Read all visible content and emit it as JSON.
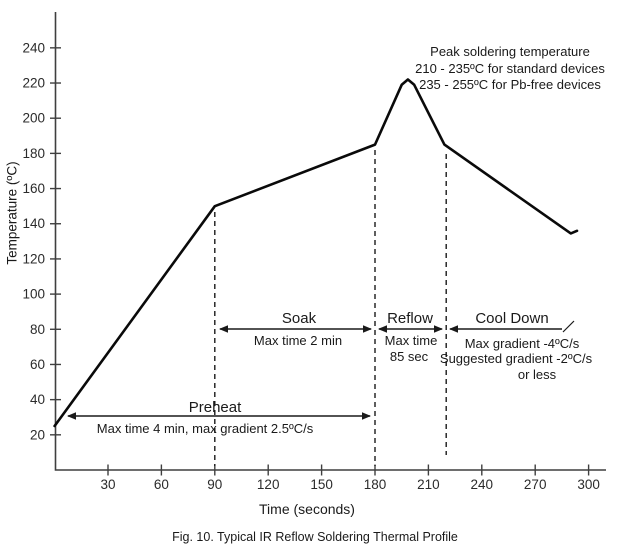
{
  "figure": {
    "caption": "Fig. 10. Typical IR Reflow Soldering Thermal Profile"
  },
  "chart_data": {
    "type": "line",
    "title": "",
    "xlabel": "Time (seconds)",
    "ylabel": "Temperature (ºC)",
    "x_ticks": [
      30,
      60,
      90,
      120,
      150,
      180,
      210,
      240,
      270,
      300
    ],
    "y_ticks": [
      20,
      40,
      60,
      80,
      100,
      120,
      140,
      160,
      180,
      200,
      220,
      240
    ],
    "xlim": [
      0,
      310
    ],
    "ylim": [
      0,
      260
    ],
    "grid": false,
    "legend": "none",
    "series": [
      {
        "name": "IR reflow thermal profile",
        "points": [
          [
            0,
            25
          ],
          [
            90,
            150
          ],
          [
            180,
            185
          ],
          [
            195,
            219
          ],
          [
            198.5,
            222
          ],
          [
            202,
            219
          ],
          [
            219,
            185
          ],
          [
            290,
            134.5
          ],
          [
            293.5,
            136
          ]
        ]
      }
    ],
    "phase_boundaries_sec": [
      90,
      180,
      220
    ],
    "annotations": {
      "peak_note_lines": [
        "Peak soldering temperature",
        "210 - 235ºC for standard devices",
        "235 - 255ºC for Pb-free devices"
      ],
      "phases": [
        {
          "name": "Preheat",
          "detail": "Max time 4 min, max gradient 2.5ºC/s",
          "span_sec": [
            0,
            180
          ]
        },
        {
          "name": "Soak",
          "detail": "Max time 2 min",
          "span_sec": [
            90,
            180
          ]
        },
        {
          "name": "Reflow",
          "detail_lines": [
            "Max time",
            "85 sec"
          ],
          "span_sec": [
            180,
            220
          ]
        },
        {
          "name": "Cool Down",
          "detail_lines": [
            "Max gradient -4ºC/s",
            "Suggested gradient -2ºC/s",
            "or less"
          ],
          "span_sec": [
            220,
            300
          ]
        }
      ]
    },
    "colors": {
      "line": "#0a0a0a",
      "axis": "#3f3f3f",
      "dashed": "#1a1a1a",
      "text": "#1a1a1a",
      "background": "#ffffff"
    }
  }
}
